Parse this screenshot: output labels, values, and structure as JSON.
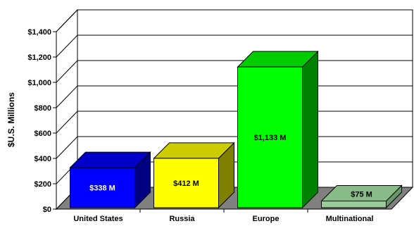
{
  "chart_data": {
    "type": "bar",
    "title": "",
    "xlabel": "",
    "ylabel": "$U.S. Millions",
    "ylim": [
      0,
      1400
    ],
    "y_ticks": [
      {
        "value": 0,
        "label": "$0"
      },
      {
        "value": 200,
        "label": "$200"
      },
      {
        "value": 400,
        "label": "$400"
      },
      {
        "value": 600,
        "label": "$600"
      },
      {
        "value": 800,
        "label": "$800"
      },
      {
        "value": 1000,
        "label": "$1,000"
      },
      {
        "value": 1200,
        "label": "$1,200"
      },
      {
        "value": 1400,
        "label": "$1,400"
      }
    ],
    "categories": [
      "United States",
      "Russia",
      "Europe",
      "Multinational"
    ],
    "values": [
      338,
      412,
      1133,
      75
    ],
    "data_labels": [
      "$338 M",
      "$412 M",
      "$1,133 M",
      "$75 M"
    ],
    "grid": true,
    "three_d": true,
    "colors": {
      "front": [
        "#0000FF",
        "#FFFF00",
        "#00FF00",
        "#99CC99"
      ],
      "top": [
        "#0000C8",
        "#CCCC00",
        "#00CC00",
        "#88BB88"
      ],
      "side": [
        "#000080",
        "#808000",
        "#008000",
        "#669966"
      ],
      "label_text": [
        "#FFFFFF",
        "#000000",
        "#000000",
        "#000000"
      ],
      "floor": "#808080"
    }
  }
}
